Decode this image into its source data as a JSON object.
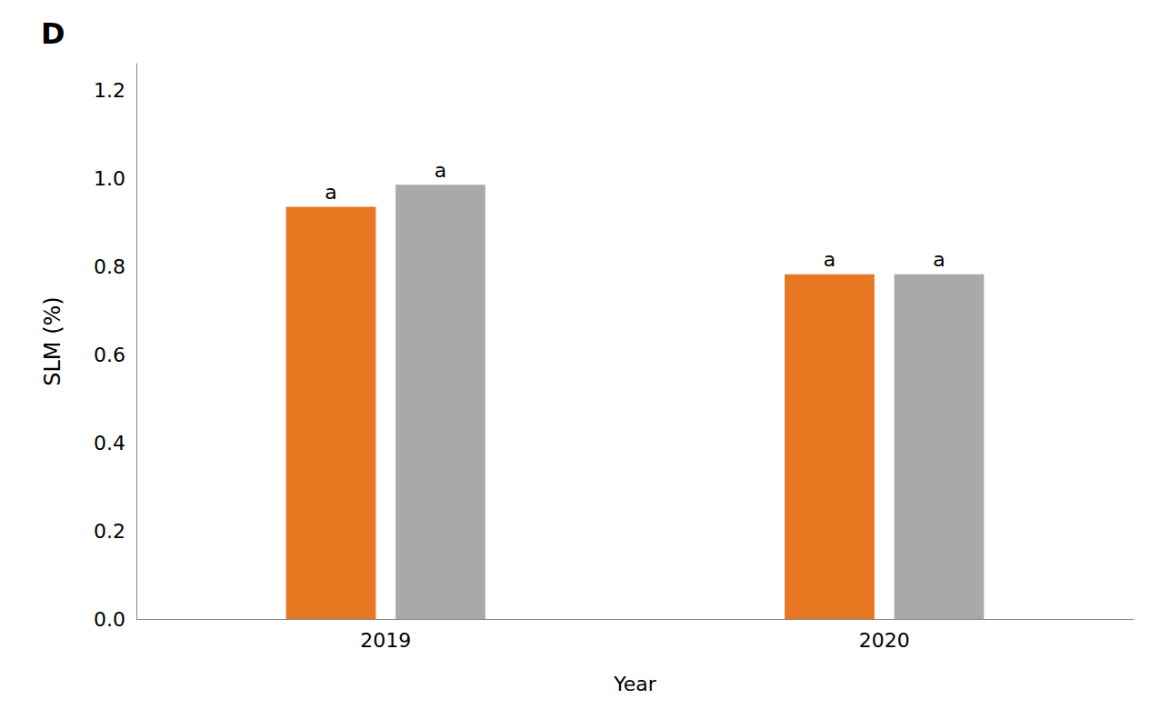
{
  "chart_data": {
    "type": "bar",
    "title": "D",
    "categories": [
      "2019",
      "2020"
    ],
    "series": [
      {
        "color": "#E87722",
        "values": [
          0.935,
          0.782
        ],
        "labels": [
          "a",
          "a"
        ]
      },
      {
        "color": "#A9A9A9",
        "values": [
          0.985,
          0.782
        ],
        "labels": [
          "a",
          "a"
        ]
      }
    ],
    "xlabel": "Year",
    "ylabel": "SLM (%)",
    "ylim": [
      0.0,
      1.26
    ],
    "yticks": [
      {
        "value": 0.0,
        "label": "0.0"
      },
      0.2,
      0.4,
      0.6,
      0.8,
      {
        "value": 1.0,
        "label": "1.0"
      },
      1.2
    ],
    "grid": false
  }
}
